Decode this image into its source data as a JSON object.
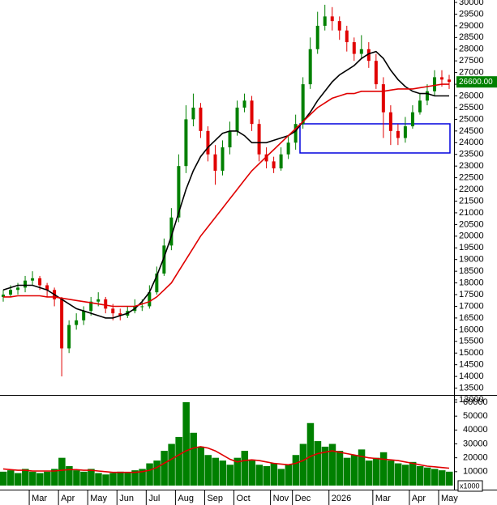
{
  "chart_data": {
    "type": "candlestick",
    "categories": [
      null,
      null,
      null,
      null,
      "Mar",
      null,
      null,
      null,
      "Apr",
      null,
      null,
      null,
      "May",
      null,
      null,
      null,
      "Jun",
      null,
      null,
      null,
      "Jul",
      null,
      null,
      null,
      "Aug",
      null,
      null,
      null,
      "Sep",
      null,
      null,
      null,
      "Oct",
      null,
      null,
      null,
      null,
      "Nov",
      null,
      null,
      "Dec",
      null,
      null,
      null,
      null,
      "2026",
      null,
      null,
      null,
      null,
      null,
      "Mar",
      null,
      null,
      null,
      null,
      "Apr",
      null,
      null,
      null,
      "May",
      null
    ],
    "open": [
      17400,
      17500,
      17700,
      17800,
      18100,
      18200,
      17900,
      17700,
      17300,
      15200,
      16200,
      16400,
      16800,
      17200,
      17300,
      16900,
      16700,
      16600,
      16800,
      17000,
      17000,
      17600,
      18400,
      19600,
      20800,
      23000,
      25000,
      25500,
      24500,
      23500,
      22800,
      23800,
      24500,
      25500,
      25800,
      24800,
      23500,
      23200,
      22900,
      23500,
      24000,
      24800,
      26500,
      28000,
      29000,
      29400,
      29200,
      28800,
      28300,
      27800,
      28000,
      27500,
      26500,
      25300,
      24500,
      24200,
      24700,
      25300,
      25800,
      26200,
      26800,
      26700
    ],
    "high": [
      17700,
      17900,
      18000,
      18300,
      18500,
      18300,
      18000,
      17800,
      17400,
      16400,
      16700,
      17000,
      17400,
      17600,
      17400,
      17100,
      16900,
      17000,
      17300,
      17300,
      17900,
      18700,
      19900,
      21200,
      23500,
      25600,
      26100,
      25700,
      24700,
      23900,
      24100,
      24900,
      25800,
      26100,
      26000,
      25000,
      23800,
      23400,
      23800,
      24300,
      25200,
      26800,
      28500,
      29600,
      29900,
      29800,
      29400,
      29000,
      28500,
      28600,
      28300,
      27800,
      26800,
      25600,
      24800,
      25100,
      25600,
      26100,
      26500,
      27100,
      27100,
      26900
    ],
    "low": [
      17200,
      17400,
      17500,
      17600,
      17900,
      17700,
      17400,
      17000,
      14000,
      15000,
      16000,
      16200,
      16600,
      17000,
      16700,
      16400,
      16400,
      16500,
      16700,
      16800,
      16900,
      17500,
      18300,
      19400,
      20600,
      22700,
      24700,
      24200,
      23200,
      22200,
      22600,
      23500,
      24300,
      25300,
      24500,
      23200,
      22900,
      22700,
      22800,
      23300,
      23700,
      24600,
      26300,
      27800,
      28800,
      28800,
      28400,
      27900,
      27500,
      27600,
      27200,
      26300,
      24200,
      23900,
      23900,
      24000,
      24600,
      25200,
      25600,
      26000,
      26400,
      26300
    ],
    "close": [
      17500,
      17700,
      17800,
      18100,
      18200,
      17900,
      17700,
      17300,
      15200,
      16200,
      16400,
      16800,
      17200,
      17300,
      16900,
      16700,
      16600,
      16800,
      17000,
      17000,
      17600,
      18400,
      19600,
      20800,
      23000,
      25000,
      25500,
      24500,
      23500,
      22800,
      23800,
      24500,
      25500,
      25800,
      24800,
      23500,
      23200,
      22900,
      23500,
      24000,
      24800,
      26500,
      28000,
      29000,
      29400,
      29200,
      28800,
      28300,
      27800,
      28000,
      27500,
      26500,
      25300,
      24500,
      24200,
      24700,
      25300,
      25800,
      26200,
      26800,
      26700,
      26600
    ],
    "up_color": "#008000",
    "down_color": "#e00000",
    "series": [
      {
        "color": "#000000",
        "values": [
          17700,
          17800,
          17900,
          17900,
          17900,
          17800,
          17700,
          17500,
          17300,
          17100,
          16900,
          16800,
          16700,
          16600,
          16500,
          16500,
          16600,
          16700,
          16900,
          17200,
          17600,
          18300,
          19100,
          20000,
          21000,
          22000,
          22800,
          23400,
          23800,
          24100,
          24400,
          24500,
          24500,
          24300,
          24000,
          24000,
          24000,
          24100,
          24200,
          24300,
          24500,
          24900,
          25300,
          25800,
          26200,
          26600,
          26900,
          27100,
          27300,
          27600,
          27800,
          27900,
          27600,
          27100,
          26700,
          26400,
          26200,
          26100,
          26100,
          26000,
          26000,
          26000
        ]
      },
      {
        "color": "#e00000",
        "values": [
          17400,
          17400,
          17450,
          17450,
          17450,
          17450,
          17400,
          17400,
          17350,
          17300,
          17250,
          17200,
          17150,
          17100,
          17050,
          17000,
          17000,
          17000,
          17000,
          17100,
          17200,
          17400,
          17700,
          18000,
          18500,
          19000,
          19500,
          20000,
          20400,
          20800,
          21200,
          21600,
          22000,
          22400,
          22800,
          23100,
          23400,
          23700,
          24000,
          24300,
          24600,
          24900,
          25200,
          25500,
          25700,
          25900,
          26000,
          26100,
          26100,
          26200,
          26200,
          26200,
          26200,
          26250,
          26300,
          26300,
          26300,
          26350,
          26400,
          26450,
          26500,
          26500
        ]
      }
    ],
    "last_price": {
      "value": 26600,
      "label": "26600.00"
    },
    "ylim": [
      13000,
      30000
    ],
    "yticks": [
      13000,
      13500,
      14000,
      14500,
      15000,
      15500,
      16000,
      16500,
      17000,
      17500,
      18000,
      18500,
      19000,
      19500,
      20000,
      20500,
      21000,
      21500,
      22000,
      22500,
      23000,
      23500,
      24000,
      24500,
      25000,
      25500,
      26000,
      26500,
      27000,
      27500,
      28000,
      28500,
      29000,
      29500,
      30000
    ],
    "volume": {
      "color": "#008000",
      "values": [
        10000,
        11000,
        9000,
        12000,
        10000,
        9000,
        10000,
        12000,
        20000,
        14000,
        11000,
        10000,
        12000,
        9000,
        8000,
        9000,
        10000,
        9000,
        11000,
        12000,
        16000,
        18000,
        25000,
        30000,
        35000,
        60000,
        38000,
        28000,
        22000,
        20000,
        18000,
        15000,
        20000,
        25000,
        18000,
        15000,
        14000,
        16000,
        12000,
        15000,
        22000,
        30000,
        45000,
        32000,
        28000,
        30000,
        25000,
        20000,
        22000,
        26000,
        18000,
        20000,
        24000,
        18000,
        16000,
        15000,
        17000,
        14000,
        13000,
        12000,
        11000,
        10000
      ],
      "ma": {
        "color": "#e00000",
        "values": [
          12000,
          11500,
          11000,
          11000,
          10500,
          10500,
          10500,
          10500,
          11000,
          11500,
          11500,
          11000,
          11000,
          10500,
          10000,
          9500,
          9500,
          9500,
          9500,
          10000,
          11000,
          13000,
          16000,
          19000,
          22000,
          25000,
          27000,
          28000,
          27000,
          25000,
          22000,
          19000,
          17000,
          18000,
          18500,
          18000,
          17000,
          16000,
          15500,
          15000,
          16000,
          18000,
          21000,
          23000,
          24000,
          25000,
          24000,
          23000,
          22000,
          21000,
          20000,
          19500,
          19000,
          18500,
          18000,
          17000,
          16000,
          15000,
          14000,
          13500,
          13000,
          12500
        ]
      },
      "ylim": [
        0,
        60000
      ],
      "yticks": [
        10000,
        20000,
        30000,
        40000,
        50000,
        60000
      ],
      "unit_label": "x1000"
    }
  }
}
